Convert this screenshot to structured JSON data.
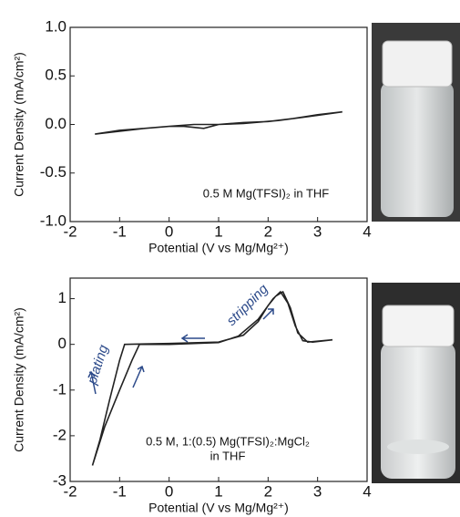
{
  "chart_data": [
    {
      "type": "line",
      "x": [
        -1.5,
        -1.0,
        -0.5,
        0,
        0.5,
        1.0,
        1.5,
        2.2,
        2.8,
        3.5,
        3.0,
        2.5,
        2.0,
        1.5,
        1.0,
        0.7,
        0.3,
        0,
        -0.5,
        -1.0,
        -1.5
      ],
      "series": [
        {
          "color": "#222222",
          "values": [
            -0.1,
            -0.07,
            -0.04,
            -0.02,
            0.0,
            0.0,
            0.01,
            0.04,
            0.08,
            0.13,
            0.1,
            0.06,
            0.03,
            0.02,
            0.0,
            -0.04,
            -0.02,
            -0.02,
            -0.04,
            -0.06,
            -0.1
          ]
        }
      ],
      "xlim": [
        -2,
        4
      ],
      "xticks": [
        -2,
        -1,
        0,
        1,
        2,
        3,
        4
      ],
      "ylim": [
        -1,
        1
      ],
      "yticks": [
        {
          "value": -1,
          "label": "-1.0"
        },
        {
          "value": -0.5,
          "label": "-0.5"
        },
        {
          "value": 0,
          "label": "0.0"
        },
        {
          "value": 0.5,
          "label": "0.5"
        },
        {
          "value": 1,
          "label": "1.0"
        }
      ],
      "x_label": "Potential (V vs Mg/Mg²⁺)",
      "y_label": "Current Density (mA/cm²)",
      "annotations": [
        "0.5 M Mg(TFSI)₂ in THF"
      ]
    },
    {
      "type": "line",
      "x": [
        3.3,
        2.9,
        2.7,
        2.55,
        2.4,
        2.25,
        2.1,
        1.8,
        1.4,
        1.0,
        0,
        -0.6,
        -0.75,
        -1.0,
        -1.3,
        -1.55,
        -1.4,
        -1.2,
        -1.0,
        -0.9,
        -0.5,
        0,
        1.0,
        1.5,
        1.8,
        2.0,
        2.15,
        2.3,
        2.45,
        2.6,
        2.8,
        3.3
      ],
      "series": [
        {
          "color": "#222222",
          "values": [
            0.1,
            0.05,
            0.08,
            0.4,
            0.9,
            1.15,
            1.0,
            0.55,
            0.18,
            0.04,
            0.0,
            0.0,
            -0.35,
            -1.0,
            -1.8,
            -2.65,
            -2.1,
            -1.2,
            -0.35,
            0.0,
            0.01,
            0.02,
            0.05,
            0.2,
            0.5,
            0.85,
            1.05,
            1.15,
            0.8,
            0.25,
            0.05,
            0.1
          ]
        }
      ],
      "xlim": [
        -2,
        4
      ],
      "xticks": [
        -2,
        -1,
        0,
        1,
        2,
        3,
        4
      ],
      "ylim": [
        -3,
        1.45
      ],
      "yticks": [
        -3,
        -2,
        -1,
        0,
        1
      ],
      "x_label": "Potential (V vs Mg/Mg²⁺)",
      "y_label": "Current Density (mA/cm²)",
      "annotations": [
        "0.5 M, 1:(0.5) Mg(TFSI)₂:MgCl₂",
        "in THF",
        "plating",
        "stripping"
      ]
    }
  ]
}
